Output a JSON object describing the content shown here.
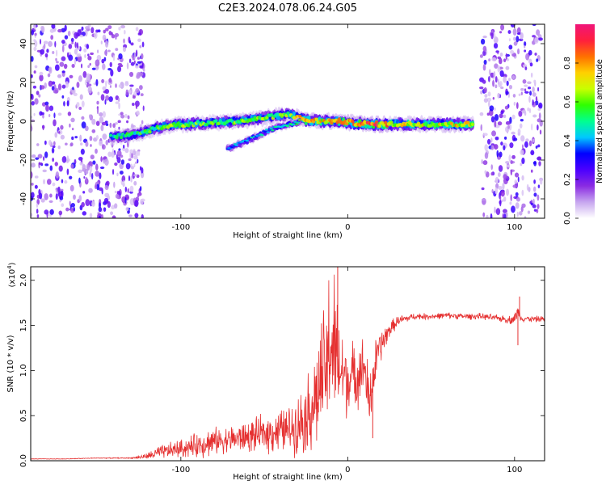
{
  "title": "C2E3.2024.078.06.24.G05",
  "chart_data": [
    {
      "type": "heatmap",
      "xlabel": "Height of straight line (km)",
      "ylabel": "Frequency (Hz)",
      "xlim": [
        -190,
        118
      ],
      "ylim": [
        -50,
        50
      ],
      "x_ticks": [
        -100,
        0,
        100
      ],
      "y_ticks": [
        -40,
        -20,
        0,
        20,
        40
      ],
      "colorbar": {
        "label": "Normalized spectral amplitude",
        "range": [
          0,
          1
        ],
        "ticks": [
          0.0,
          0.2,
          0.4,
          0.6,
          0.8
        ],
        "colors": [
          "#ffffff",
          "#c7a6ef",
          "#8a2be2",
          "#4b00ff",
          "#0000ff",
          "#00c8ff",
          "#00ff90",
          "#2fff00",
          "#c8ff00",
          "#ffd000",
          "#ff7000",
          "#ff1f3d",
          "#f0157a"
        ]
      },
      "noise_regions": [
        {
          "x": [
            -190,
            -122
          ],
          "y": [
            -50,
            50
          ]
        },
        {
          "x": [
            80,
            116
          ],
          "y": [
            -50,
            50
          ]
        }
      ],
      "ridge": [
        {
          "x": -142,
          "y": -8.0,
          "amp": 0.45
        },
        {
          "x": -135,
          "y": -7.5,
          "amp": 0.5
        },
        {
          "x": -125,
          "y": -6.5,
          "amp": 0.55
        },
        {
          "x": -115,
          "y": -3.5,
          "amp": 0.55
        },
        {
          "x": -105,
          "y": -2.0,
          "amp": 0.6
        },
        {
          "x": -95,
          "y": -1.5,
          "amp": 0.6
        },
        {
          "x": -85,
          "y": -1.0,
          "amp": 0.58
        },
        {
          "x": -75,
          "y": -0.5,
          "amp": 0.62
        },
        {
          "x": -65,
          "y": 0.0,
          "amp": 0.6
        },
        {
          "x": -55,
          "y": 1.0,
          "amp": 0.6
        },
        {
          "x": -45,
          "y": 2.5,
          "amp": 0.62
        },
        {
          "x": -35,
          "y": 3.5,
          "amp": 0.6
        },
        {
          "x": -25,
          "y": 0.5,
          "amp": 0.8
        },
        {
          "x": -15,
          "y": 0.0,
          "amp": 0.75
        },
        {
          "x": -5,
          "y": 0.0,
          "amp": 0.8
        },
        {
          "x": 5,
          "y": -1.0,
          "amp": 0.85
        },
        {
          "x": 15,
          "y": -1.5,
          "amp": 0.9
        },
        {
          "x": 30,
          "y": -1.5,
          "amp": 0.72
        },
        {
          "x": 45,
          "y": -1.5,
          "amp": 0.7
        },
        {
          "x": 60,
          "y": -1.5,
          "amp": 0.72
        },
        {
          "x": 75,
          "y": -1.5,
          "amp": 0.75
        }
      ],
      "secondary_ridge": [
        {
          "x": -72,
          "y": -14.0,
          "amp": 0.4
        },
        {
          "x": -60,
          "y": -10.0,
          "amp": 0.42
        },
        {
          "x": -48,
          "y": -5.0,
          "amp": 0.45
        },
        {
          "x": -38,
          "y": -2.0,
          "amp": 0.5
        },
        {
          "x": -28,
          "y": 0.0,
          "amp": 0.55
        }
      ]
    },
    {
      "type": "line",
      "xlabel": "Height of straight line (km)",
      "ylabel": "SNR (10 * v/v)",
      "scale_label": "(x10",
      "scale_exponent": "4",
      "scale_close": ")",
      "xlim": [
        -190,
        118
      ],
      "ylim": [
        0,
        2.15
      ],
      "x_ticks": [
        -100,
        0,
        100
      ],
      "y_ticks": [
        0.0,
        0.5,
        1.0,
        1.5,
        2.0
      ],
      "y_tick_labels": [
        "0.0",
        "0.5",
        "1.0",
        "1.5",
        "2.0"
      ],
      "line_color": "#e53030",
      "series": [
        {
          "x": [
            -190,
            -170,
            -150,
            -130,
            -120,
            -115,
            -105,
            -95,
            -85,
            -75,
            -65,
            -55,
            -45,
            -35,
            -30,
            -25,
            -20,
            -15,
            -12,
            -10,
            -8,
            -5,
            -2,
            0,
            5,
            10,
            13,
            15,
            18,
            22,
            25,
            30,
            40,
            50,
            60,
            70,
            80,
            90,
            98,
            100,
            102,
            104,
            110,
            118
          ],
          "y": [
            0.02,
            0.02,
            0.03,
            0.03,
            0.05,
            0.08,
            0.12,
            0.15,
            0.2,
            0.23,
            0.25,
            0.28,
            0.32,
            0.35,
            0.4,
            0.5,
            0.65,
            0.9,
            1.1,
            1.35,
            1.2,
            1.0,
            0.95,
            0.9,
            0.95,
            1.05,
            0.6,
            0.9,
            1.2,
            1.35,
            1.45,
            1.55,
            1.6,
            1.6,
            1.61,
            1.6,
            1.6,
            1.58,
            1.56,
            1.58,
            1.65,
            1.58,
            1.57,
            1.57
          ],
          "noise": [
            0.003,
            0.003,
            0.004,
            0.005,
            0.03,
            0.06,
            0.08,
            0.1,
            0.14,
            0.12,
            0.14,
            0.16,
            0.2,
            0.22,
            0.28,
            0.35,
            0.5,
            0.6,
            0.8,
            0.9,
            0.75,
            0.55,
            0.4,
            0.35,
            0.3,
            0.3,
            0.3,
            0.28,
            0.2,
            0.12,
            0.08,
            0.05,
            0.03,
            0.03,
            0.03,
            0.03,
            0.03,
            0.03,
            0.04,
            0.06,
            0.06,
            0.03,
            0.03,
            0.03
          ]
        }
      ],
      "annotations": [
        {
          "x": -6,
          "y": 2.15
        },
        {
          "x": 15,
          "y": 0.25
        },
        {
          "x": 102,
          "y": 1.28
        },
        {
          "x": 103,
          "y": 1.82
        }
      ]
    }
  ]
}
